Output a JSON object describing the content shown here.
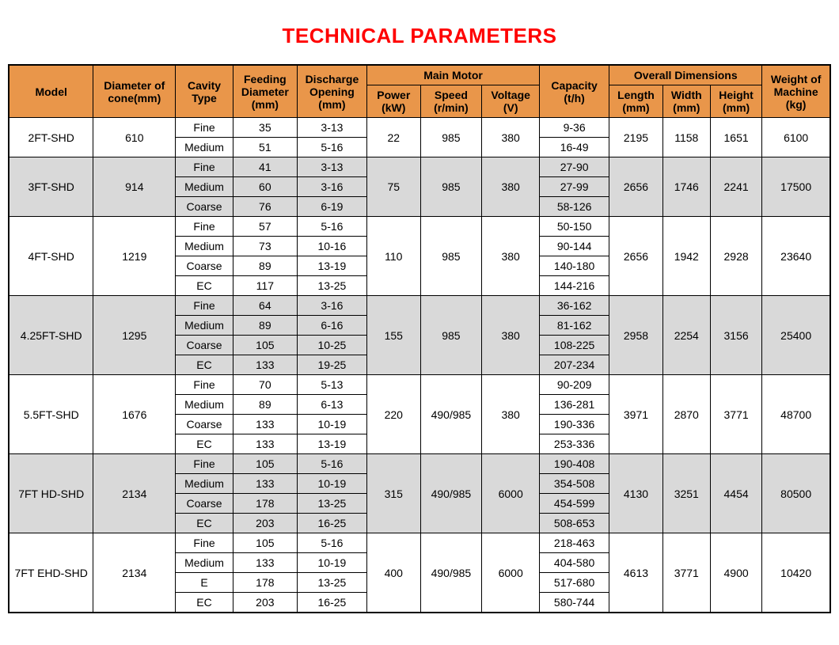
{
  "title": "TECHNICAL PARAMETERS",
  "styling": {
    "title_color": "#ff0000",
    "title_fontsize": 26,
    "header_bg": "#e9964a",
    "row_bg": "#ffffff",
    "alt_row_bg": "#d9d9d9",
    "border_color": "#000000",
    "cell_fontsize": 14,
    "col_widths_pct": [
      10.3,
      10.0,
      7.0,
      7.8,
      8.5,
      6.5,
      7.5,
      7.0,
      8.5,
      6.5,
      5.8,
      6.3,
      8.3
    ]
  },
  "headers": {
    "model": "Model",
    "diameter": "Diameter of cone(mm)",
    "cavity": "Cavity Type",
    "feeding": "Feeding Diameter (mm)",
    "discharge": "Discharge Opening (mm)",
    "main_motor": "Main Motor",
    "power": "Power (kW)",
    "speed": "Speed (r/min)",
    "voltage": "Voltage (V)",
    "capacity": "Capacity (t/h)",
    "overall": "Overall Dimensions",
    "length": "Length (mm)",
    "width": "Width (mm)",
    "height": "Height (mm)",
    "weight": "Weight of Machine (kg)"
  },
  "models": [
    {
      "model": "2FT-SHD",
      "diameter": "610",
      "alt": false,
      "power": "22",
      "speed": "985",
      "voltage": "380",
      "length": "2195",
      "width": "1158",
      "height": "1651",
      "weight": "6100",
      "cavities": [
        {
          "type": "Fine",
          "feeding": "35",
          "discharge": "3-13",
          "capacity": "9-36"
        },
        {
          "type": "Medium",
          "feeding": "51",
          "discharge": "5-16",
          "capacity": "16-49"
        }
      ]
    },
    {
      "model": "3FT-SHD",
      "diameter": "914",
      "alt": true,
      "power": "75",
      "speed": "985",
      "voltage": "380",
      "length": "2656",
      "width": "1746",
      "height": "2241",
      "weight": "17500",
      "cavities": [
        {
          "type": "Fine",
          "feeding": "41",
          "discharge": "3-13",
          "capacity": "27-90"
        },
        {
          "type": "Medium",
          "feeding": "60",
          "discharge": "3-16",
          "capacity": "27-99"
        },
        {
          "type": "Coarse",
          "feeding": "76",
          "discharge": "6-19",
          "capacity": "58-126"
        }
      ]
    },
    {
      "model": "4FT-SHD",
      "diameter": "1219",
      "alt": false,
      "power": "110",
      "speed": "985",
      "voltage": "380",
      "length": "2656",
      "width": "1942",
      "height": "2928",
      "weight": "23640",
      "cavities": [
        {
          "type": "Fine",
          "feeding": "57",
          "discharge": "5-16",
          "capacity": "50-150"
        },
        {
          "type": "Medium",
          "feeding": "73",
          "discharge": "10-16",
          "capacity": "90-144"
        },
        {
          "type": "Coarse",
          "feeding": "89",
          "discharge": "13-19",
          "capacity": "140-180"
        },
        {
          "type": "EC",
          "feeding": "117",
          "discharge": "13-25",
          "capacity": "144-216"
        }
      ]
    },
    {
      "model": "4.25FT-SHD",
      "diameter": "1295",
      "alt": true,
      "power": "155",
      "speed": "985",
      "voltage": "380",
      "length": "2958",
      "width": "2254",
      "height": "3156",
      "weight": "25400",
      "cavities": [
        {
          "type": "Fine",
          "feeding": "64",
          "discharge": "3-16",
          "capacity": "36-162"
        },
        {
          "type": "Medium",
          "feeding": "89",
          "discharge": "6-16",
          "capacity": "81-162"
        },
        {
          "type": "Coarse",
          "feeding": "105",
          "discharge": "10-25",
          "capacity": "108-225"
        },
        {
          "type": "EC",
          "feeding": "133",
          "discharge": "19-25",
          "capacity": "207-234"
        }
      ]
    },
    {
      "model": "5.5FT-SHD",
      "diameter": "1676",
      "alt": false,
      "power": "220",
      "speed": "490/985",
      "voltage": "380",
      "length": "3971",
      "width": "2870",
      "height": "3771",
      "weight": "48700",
      "cavities": [
        {
          "type": "Fine",
          "feeding": "70",
          "discharge": "5-13",
          "capacity": "90-209"
        },
        {
          "type": "Medium",
          "feeding": "89",
          "discharge": "6-13",
          "capacity": "136-281"
        },
        {
          "type": "Coarse",
          "feeding": "133",
          "discharge": "10-19",
          "capacity": "190-336"
        },
        {
          "type": "EC",
          "feeding": "133",
          "discharge": "13-19",
          "capacity": "253-336"
        }
      ]
    },
    {
      "model": "7FT HD-SHD",
      "diameter": "2134",
      "alt": true,
      "power": "315",
      "speed": "490/985",
      "voltage": "6000",
      "length": "4130",
      "width": "3251",
      "height": "4454",
      "weight": "80500",
      "cavities": [
        {
          "type": "Fine",
          "feeding": "105",
          "discharge": "5-16",
          "capacity": "190-408"
        },
        {
          "type": "Medium",
          "feeding": "133",
          "discharge": "10-19",
          "capacity": "354-508"
        },
        {
          "type": "Coarse",
          "feeding": "178",
          "discharge": "13-25",
          "capacity": "454-599"
        },
        {
          "type": "EC",
          "feeding": "203",
          "discharge": "16-25",
          "capacity": "508-653"
        }
      ]
    },
    {
      "model": "7FT EHD-SHD",
      "diameter": "2134",
      "alt": false,
      "power": "400",
      "speed": "490/985",
      "voltage": "6000",
      "length": "4613",
      "width": "3771",
      "height": "4900",
      "weight": "10420",
      "cavities": [
        {
          "type": "Fine",
          "feeding": "105",
          "discharge": "5-16",
          "capacity": "218-463"
        },
        {
          "type": "Medium",
          "feeding": "133",
          "discharge": "10-19",
          "capacity": "404-580"
        },
        {
          "type": "E",
          "feeding": "178",
          "discharge": "13-25",
          "capacity": "517-680"
        },
        {
          "type": "EC",
          "feeding": "203",
          "discharge": "16-25",
          "capacity": "580-744"
        }
      ]
    }
  ]
}
